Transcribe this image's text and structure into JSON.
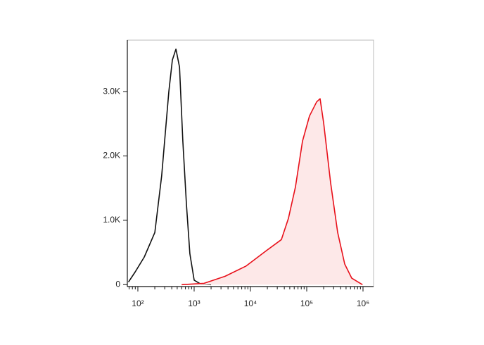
{
  "chart_data": {
    "type": "histogram-overlay",
    "xscale": "log",
    "xlim": [
      65,
      1540000
    ],
    "ylim": [
      -30,
      3800
    ],
    "xticks": [
      {
        "value": 100,
        "label": "10²"
      },
      {
        "value": 1000,
        "label": "10³"
      },
      {
        "value": 10000,
        "label": "10⁴"
      },
      {
        "value": 100000,
        "label": "10⁵"
      },
      {
        "value": 1000000,
        "label": "10⁶"
      }
    ],
    "xminorticks": [
      70,
      80,
      90,
      200,
      300,
      400,
      500,
      600,
      700,
      800,
      900,
      2000,
      3000,
      4000,
      5000,
      6000,
      7000,
      8000,
      9000,
      20000,
      30000,
      40000,
      50000,
      60000,
      70000,
      80000,
      90000,
      200000,
      300000,
      400000,
      500000,
      600000,
      700000,
      800000,
      900000
    ],
    "yticks": [
      0,
      {
        "value": 1000,
        "label": "1.0K"
      },
      {
        "value": 2000,
        "label": "2.0K"
      },
      {
        "value": 3000,
        "label": "3.0K"
      }
    ],
    "series": [
      {
        "color": "#111111",
        "fill": false,
        "x": [
          68,
          90,
          130,
          200,
          265,
          355,
          410,
          475,
          550,
          630,
          730,
          840,
          1000,
          1300,
          2000
        ],
        "values": [
          40,
          200,
          430,
          810,
          1690,
          3000,
          3490,
          3660,
          3380,
          2230,
          1250,
          480,
          70,
          10,
          0
        ]
      },
      {
        "color": "#e8101a",
        "fill": "#fde8e8",
        "x": [
          600,
          1500,
          3550,
          8400,
          20000,
          35500,
          47300,
          63100,
          84100,
          112000,
          150000,
          173000,
          200000,
          266000,
          355000,
          473000,
          631000,
          980000
        ],
        "values": [
          0,
          20,
          130,
          290,
          540,
          700,
          1030,
          1520,
          2230,
          2620,
          2840,
          2890,
          2510,
          1580,
          810,
          320,
          100,
          0
        ]
      }
    ]
  }
}
